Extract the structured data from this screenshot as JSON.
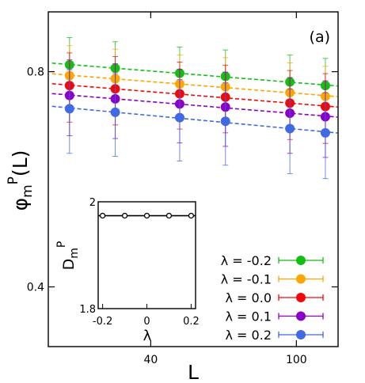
{
  "chart_data": [
    {
      "type": "scatter",
      "panel_label": "(a)",
      "xlabel": "L",
      "ylabel_main": "φ",
      "ylabel_sub": "m",
      "ylabel_sup": "P",
      "ylabel_tail": "(L)",
      "x_scale": "log",
      "y_scale": "log",
      "xlim": [
        21,
        130
      ],
      "ylim": [
        0.33,
        0.97
      ],
      "xticks": [
        40,
        100
      ],
      "xtick_labels": [
        "40",
        "100"
      ],
      "yticks": [
        0.4,
        0.8
      ],
      "ytick_labels": [
        "0.4",
        "0.8"
      ],
      "grid": false,
      "legend_position": "bottom-right",
      "fit_lines": "dashed",
      "x": [
        24,
        32,
        48,
        64,
        96,
        120
      ],
      "series": [
        {
          "name": "λ = -0.2",
          "color": "#13bf13",
          "values": [
            0.818,
            0.809,
            0.796,
            0.788,
            0.774,
            0.765
          ],
          "err": [
            0.075,
            0.072,
            0.07,
            0.07,
            0.07,
            0.07
          ]
        },
        {
          "name": "λ = -0.1",
          "color": "#ffa500",
          "values": [
            0.79,
            0.782,
            0.769,
            0.762,
            0.748,
            0.739
          ],
          "err": [
            0.08,
            0.078,
            0.075,
            0.075,
            0.075,
            0.075
          ]
        },
        {
          "name": "λ = 0.0",
          "color": "#ef0a0a",
          "values": [
            0.765,
            0.757,
            0.745,
            0.737,
            0.723,
            0.715
          ],
          "err": [
            0.085,
            0.083,
            0.08,
            0.08,
            0.08,
            0.08
          ]
        },
        {
          "name": "λ = 0.1",
          "color": "#8b00c8",
          "values": [
            0.741,
            0.733,
            0.721,
            0.714,
            0.7,
            0.692
          ],
          "err": [
            0.09,
            0.088,
            0.085,
            0.085,
            0.085,
            0.085
          ]
        },
        {
          "name": "λ = 0.2",
          "color": "#4169e1",
          "values": [
            0.71,
            0.702,
            0.69,
            0.682,
            0.666,
            0.657
          ],
          "err": [
            0.095,
            0.093,
            0.09,
            0.09,
            0.09,
            0.09
          ]
        }
      ]
    },
    {
      "type": "line",
      "role": "inset",
      "xlabel": "λ",
      "ylabel_main": "D",
      "ylabel_sub": "m",
      "ylabel_sup": "P",
      "xlim": [
        -0.22,
        0.22
      ],
      "ylim": [
        1.8,
        2.0
      ],
      "xticks": [
        -0.2,
        0,
        0.2
      ],
      "xtick_labels": [
        "-0.2",
        "0",
        "0.2"
      ],
      "yticks": [
        1.8,
        2.0
      ],
      "ytick_labels": [
        "1.8",
        "2"
      ],
      "color": "#000000",
      "x": [
        -0.2,
        -0.1,
        0,
        0.1,
        0.2
      ],
      "values": [
        1.974,
        1.974,
        1.974,
        1.974,
        1.974
      ]
    }
  ]
}
